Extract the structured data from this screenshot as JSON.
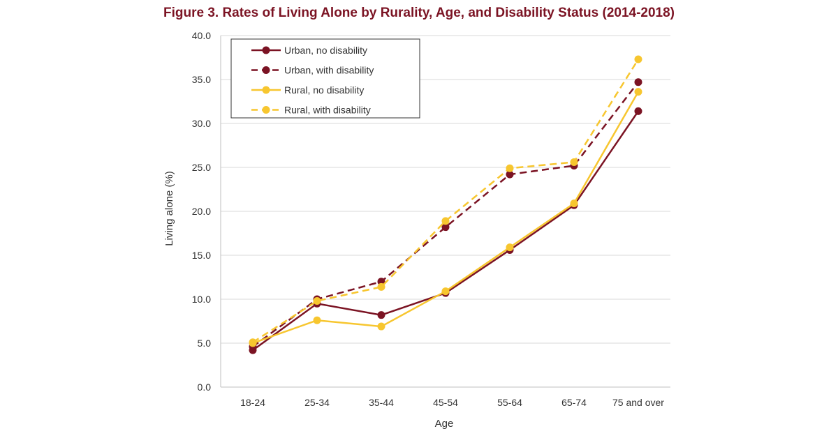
{
  "chart_data": {
    "type": "line",
    "title": "Figure 3. Rates of Living Alone by Rurality, Age, and Disability Status (2014-2018)",
    "xlabel": "Age",
    "ylabel": "Living alone (%)",
    "categories": [
      "18-24",
      "25-34",
      "35-44",
      "45-54",
      "55-64",
      "65-74",
      "75 and over"
    ],
    "ylim": [
      0,
      40
    ],
    "yticks": [
      "0.0",
      "5.0",
      "10.0",
      "15.0",
      "20.0",
      "25.0",
      "30.0",
      "35.0",
      "40.0"
    ],
    "grid": true,
    "legend_position": "top-left",
    "series": [
      {
        "name": "Urban, no disability",
        "color": "#7b1323",
        "dashed": false,
        "values": [
          4.2,
          9.5,
          8.2,
          10.7,
          15.6,
          20.7,
          31.4
        ]
      },
      {
        "name": "Urban, with disability",
        "color": "#7b1323",
        "dashed": true,
        "values": [
          4.6,
          10.0,
          12.0,
          18.2,
          24.2,
          25.2,
          34.7
        ]
      },
      {
        "name": "Rural, no disability",
        "color": "#f7c62f",
        "dashed": false,
        "values": [
          5.0,
          7.6,
          6.9,
          10.9,
          15.9,
          20.9,
          33.6
        ]
      },
      {
        "name": "Rural, with disability",
        "color": "#f7c62f",
        "dashed": true,
        "values": [
          5.1,
          9.8,
          11.4,
          18.9,
          24.9,
          25.6,
          37.3
        ]
      }
    ]
  }
}
